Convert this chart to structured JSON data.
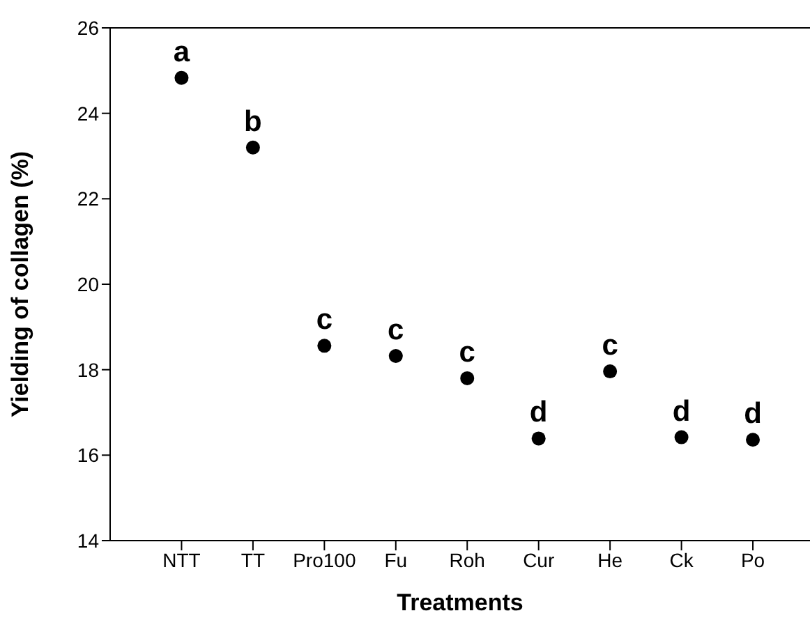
{
  "chart_data": {
    "type": "scatter",
    "xlabel": "Treatments",
    "ylabel": "Yielding of collagen (%)",
    "categories": [
      "NTT",
      "TT",
      "Pro100",
      "Fu",
      "Roh",
      "Cur",
      "He",
      "Ck",
      "Po"
    ],
    "values": [
      24.83,
      23.2,
      18.56,
      18.32,
      17.8,
      16.39,
      17.96,
      16.42,
      16.36
    ],
    "color": "#000000",
    "marker": "circle",
    "grid": false,
    "legend": false,
    "ylim": [
      14,
      26
    ],
    "yticks": [
      14,
      16,
      18,
      20,
      22,
      24,
      26
    ],
    "annotations": [
      {
        "text": "a",
        "x": "NTT",
        "y": 24.83
      },
      {
        "text": "b",
        "x": "TT",
        "y": 23.2
      },
      {
        "text": "c",
        "x": "Pro100",
        "y": 18.56
      },
      {
        "text": "c",
        "x": "Fu",
        "y": 18.32
      },
      {
        "text": "c",
        "x": "Roh",
        "y": 17.8
      },
      {
        "text": "d",
        "x": "Cur",
        "y": 16.39
      },
      {
        "text": "c",
        "x": "He",
        "y": 17.96
      },
      {
        "text": "d",
        "x": "Ck",
        "y": 16.42
      },
      {
        "text": "d",
        "x": "Po",
        "y": 16.36
      }
    ]
  }
}
